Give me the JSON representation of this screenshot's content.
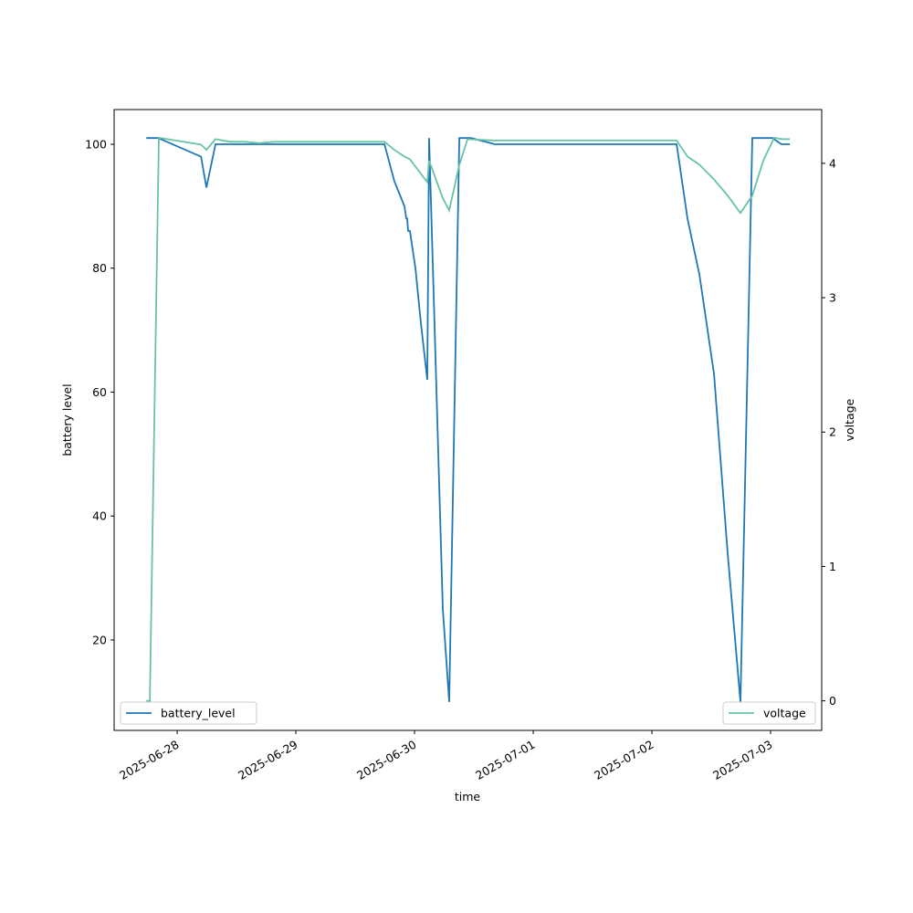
{
  "chart_data": {
    "type": "line",
    "xlabel": "time",
    "ylabel": "battery level",
    "y2label": "voltage",
    "xlim": [
      "2025-06-27 11:15",
      "2025-07-03 10:20"
    ],
    "xticks": [
      "2025-06-28",
      "2025-06-29",
      "2025-06-30",
      "2025-07-01",
      "2025-07-02",
      "2025-07-03"
    ],
    "ylim": [
      5.4,
      105.6
    ],
    "yticks": [
      20,
      40,
      60,
      80,
      100
    ],
    "y2lim": [
      -0.22,
      4.4
    ],
    "y2ticks": [
      0,
      1,
      2,
      3,
      4
    ],
    "series": [
      {
        "name": "battery_level",
        "color": "#1f77b4",
        "axis": "y",
        "legend": "lower left",
        "x": [
          "2025-06-27 17:45",
          "2025-06-27 20:10",
          "2025-06-28 04:50",
          "2025-06-28 05:55",
          "2025-06-28 07:45",
          "2025-06-29 17:55",
          "2025-06-29 19:56",
          "2025-06-29 21:58",
          "2025-06-29 22:20",
          "2025-06-29 22:31",
          "2025-06-29 22:42",
          "2025-06-29 23:04",
          "2025-06-30 00:11",
          "2025-06-30 01:18",
          "2025-06-30 02:35",
          "2025-06-30 02:57",
          "2025-06-30 05:43",
          "2025-06-30 07:00",
          "2025-06-30 09:03",
          "2025-06-30 11:27",
          "2025-06-30 16:15",
          "2025-07-02 05:00",
          "2025-07-02 07:12",
          "2025-07-02 09:36",
          "2025-07-02 12:33",
          "2025-07-02 15:19",
          "2025-07-02 17:54",
          "2025-07-02 20:18",
          "2025-07-03 00:22",
          "2025-07-03 02:12",
          "2025-07-03 03:53"
        ],
        "values": [
          101,
          101,
          98,
          93,
          100,
          100,
          94,
          90,
          88,
          88,
          86,
          86,
          80,
          71,
          62,
          101,
          25,
          10,
          101,
          101,
          100,
          100,
          88,
          79,
          63,
          34,
          10,
          101,
          101,
          100,
          100
        ]
      },
      {
        "name": "voltage",
        "color": "#66c2a5",
        "axis": "y2",
        "legend": "lower right",
        "x": [
          "2025-06-27 17:45",
          "2025-06-27 18:28",
          "2025-06-27 20:18",
          "2025-06-28 04:50",
          "2025-06-28 05:55",
          "2025-06-28 07:45",
          "2025-06-28 10:42",
          "2025-06-28 13:40",
          "2025-06-28 16:37",
          "2025-06-28 19:34",
          "2025-06-29 17:55",
          "2025-06-29 19:56",
          "2025-06-29 21:58",
          "2025-06-29 23:04",
          "2025-06-30 02:35",
          "2025-06-30 02:57",
          "2025-06-30 05:43",
          "2025-06-30 07:00",
          "2025-06-30 09:03",
          "2025-06-30 10:43",
          "2025-06-30 16:15",
          "2025-07-02 05:00",
          "2025-07-02 07:12",
          "2025-07-02 09:36",
          "2025-07-02 12:33",
          "2025-07-02 15:19",
          "2025-07-02 17:54",
          "2025-07-02 20:18",
          "2025-07-02 22:31",
          "2025-07-03 00:44",
          "2025-07-03 02:12",
          "2025-07-03 03:53"
        ],
        "values": [
          0,
          0,
          4.19,
          4.14,
          4.1,
          4.18,
          4.16,
          4.16,
          4.15,
          4.16,
          4.16,
          4.1,
          4.05,
          4.03,
          3.86,
          4.02,
          3.74,
          3.65,
          3.99,
          4.18,
          4.17,
          4.17,
          4.05,
          3.99,
          3.88,
          3.76,
          3.63,
          3.76,
          4.02,
          4.19,
          4.18,
          4.18
        ]
      }
    ]
  }
}
